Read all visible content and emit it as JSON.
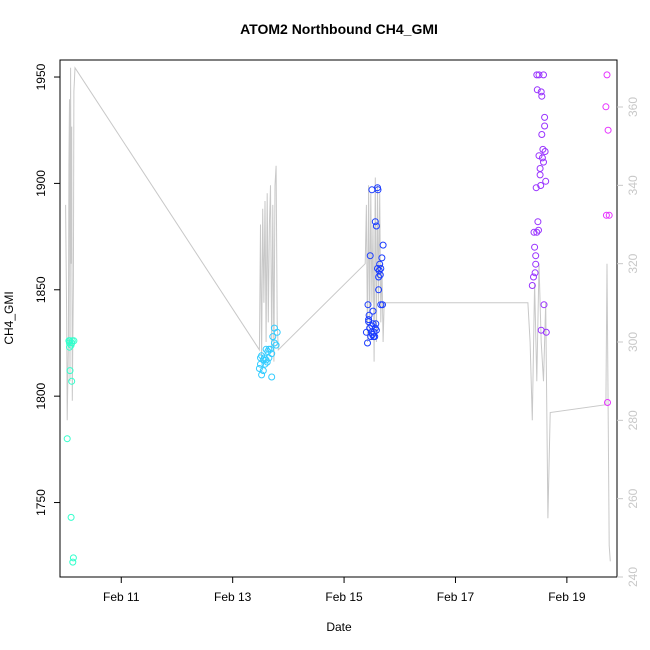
{
  "chart_data": {
    "type": "scatter",
    "title": "ATOM2 Northbound CH4_GMI",
    "xlabel": "Date",
    "ylabel": "CH4_GMI",
    "x_ticks": [
      "Feb 11",
      "Feb 13",
      "Feb 15",
      "Feb 17",
      "Feb 19"
    ],
    "x_tick_values": [
      11,
      13,
      15,
      17,
      19
    ],
    "xlim": [
      9.9,
      19.9
    ],
    "ylim": [
      1715,
      1958
    ],
    "y_ticks": [
      "1750",
      "1800",
      "1850",
      "1900",
      "1950"
    ],
    "y_tick_values": [
      1750,
      1800,
      1850,
      1900,
      1950
    ],
    "y2lim": [
      240,
      372
    ],
    "y2_ticks": [
      "240",
      "260",
      "280",
      "300",
      "320",
      "340",
      "360"
    ],
    "y2_tick_values": [
      240,
      260,
      280,
      300,
      320,
      340,
      360
    ],
    "grid": false,
    "legend": "none",
    "colors": {
      "cluster1": "#33ffcc",
      "cluster2": "#33ccff",
      "cluster3": "#1a3cff",
      "cluster4": "#9933ff",
      "cluster5": "#e633ff",
      "secondary_line": "#c8c8c8"
    },
    "series": [
      {
        "color": "cluster1",
        "x": [
          10.03,
          10.06,
          10.07,
          10.08,
          10.1,
          10.11,
          10.12,
          10.13,
          10.14,
          10.08,
          10.11,
          10.1,
          10.15,
          10.07
        ],
        "y": [
          1780,
          1826,
          1825,
          1812,
          1743,
          1807,
          1826,
          1722,
          1724,
          1826,
          1825,
          1824,
          1826,
          1823
        ]
      },
      {
        "color": "cluster2",
        "x": [
          13.48,
          13.5,
          13.52,
          13.55,
          13.57,
          13.6,
          13.62,
          13.65,
          13.68,
          13.7,
          13.72,
          13.75,
          13.78,
          13.8,
          13.5,
          13.55,
          13.6,
          13.65,
          13.7,
          13.75,
          13.52,
          13.58,
          13.63
        ],
        "y": [
          1813,
          1815,
          1810,
          1817,
          1818,
          1822,
          1816,
          1818,
          1822,
          1820,
          1828,
          1832,
          1824,
          1830,
          1818,
          1812,
          1817,
          1822,
          1809,
          1825,
          1819,
          1815,
          1821
        ]
      },
      {
        "color": "cluster3",
        "x": [
          15.4,
          15.42,
          15.44,
          15.46,
          15.48,
          15.5,
          15.52,
          15.54,
          15.56,
          15.58,
          15.6,
          15.62,
          15.64,
          15.66,
          15.68,
          15.7,
          15.45,
          15.5,
          15.55,
          15.6,
          15.62,
          15.65,
          15.47,
          15.52,
          15.57,
          15.63,
          15.43,
          15.49,
          15.53,
          15.58,
          15.61,
          15.66,
          15.69,
          15.44,
          15.51,
          15.56
        ],
        "y": [
          1830,
          1825,
          1835,
          1832,
          1828,
          1897,
          1834,
          1830,
          1882,
          1880,
          1898,
          1856,
          1862,
          1843,
          1865,
          1871,
          1838,
          1833,
          1828,
          1860,
          1850,
          1857,
          1866,
          1840,
          1834,
          1859,
          1843,
          1830,
          1828,
          1831,
          1897,
          1860,
          1843,
          1836,
          1829,
          1832
        ]
      },
      {
        "color": "cluster4",
        "x": [
          18.38,
          18.4,
          18.42,
          18.44,
          18.46,
          18.48,
          18.5,
          18.52,
          18.54,
          18.56,
          18.58,
          18.6,
          18.62,
          18.45,
          18.5,
          18.55,
          18.6,
          18.47,
          18.53,
          18.58,
          18.43,
          18.49,
          18.57,
          18.61,
          18.41,
          18.52,
          18.59,
          18.46,
          18.54,
          18.63,
          18.44,
          18.55
        ],
        "y": [
          1852,
          1856,
          1870,
          1866,
          1877,
          1882,
          1913,
          1907,
          1943,
          1912,
          1951,
          1927,
          1901,
          1898,
          1951,
          1923,
          1931,
          1944,
          1899,
          1910,
          1858,
          1878,
          1916,
          1915,
          1877,
          1904,
          1843,
          1951,
          1831,
          1830,
          1862,
          1941
        ]
      },
      {
        "color": "cluster5",
        "x": [
          19.7,
          19.72,
          19.74,
          19.76,
          19.73,
          19.71
        ],
        "y": [
          1936,
          1951,
          1925,
          1885,
          1797,
          1885
        ]
      }
    ],
    "secondary_line": {
      "y_axis": "right",
      "x": [
        10.0,
        10.02,
        10.03,
        10.05,
        10.06,
        10.07,
        10.08,
        10.09,
        10.1,
        10.11,
        10.12,
        10.13,
        10.14,
        10.15,
        10.17,
        13.48,
        13.5,
        13.52,
        13.54,
        13.56,
        13.58,
        13.6,
        13.62,
        13.64,
        13.66,
        13.68,
        13.7,
        13.72,
        13.74,
        13.76,
        13.78,
        13.8,
        13.82,
        15.38,
        15.4,
        15.42,
        15.44,
        15.46,
        15.48,
        15.5,
        15.52,
        15.54,
        15.56,
        15.58,
        15.6,
        15.62,
        15.64,
        15.66,
        15.68,
        15.7,
        15.72,
        18.3,
        18.34,
        18.38,
        18.42,
        18.46,
        18.5,
        18.54,
        18.58,
        18.62,
        18.66,
        18.7,
        19.7,
        19.72,
        19.76,
        19.78
      ],
      "y": [
        335,
        305,
        280,
        300,
        345,
        362,
        290,
        370,
        320,
        355,
        285,
        300,
        315,
        364,
        370,
        298,
        330,
        295,
        334,
        310,
        336,
        300,
        338,
        305,
        330,
        340,
        298,
        335,
        295,
        340,
        345,
        305,
        298,
        320,
        335,
        300,
        340,
        305,
        338,
        310,
        330,
        295,
        342,
        300,
        340,
        310,
        338,
        305,
        320,
        300,
        310,
        310,
        300,
        280,
        315,
        290,
        320,
        300,
        290,
        310,
        255,
        282,
        284,
        320,
        248,
        244
      ]
    }
  }
}
